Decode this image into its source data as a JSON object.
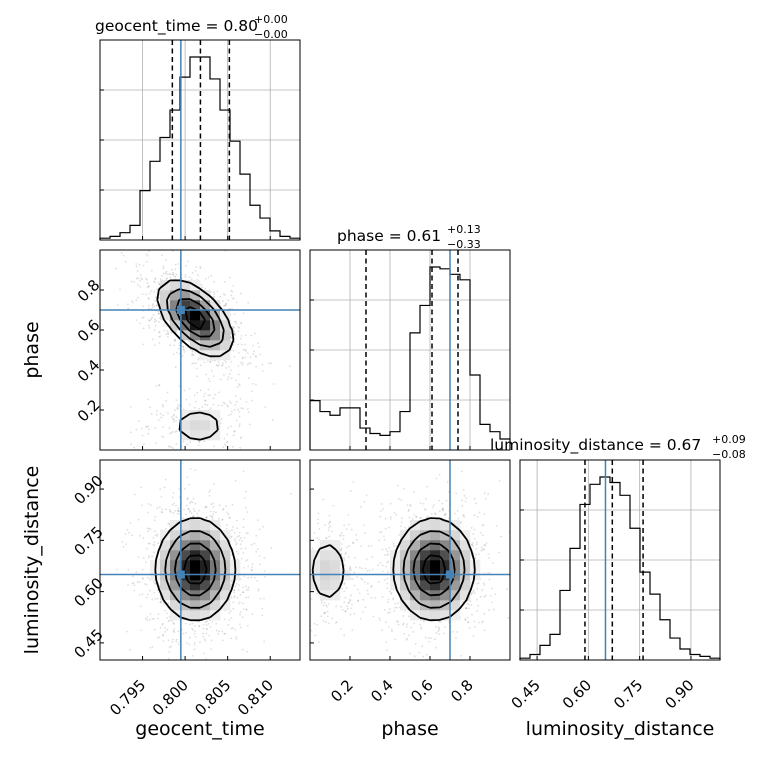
{
  "chart_data": {
    "type": "corner",
    "params": [
      "geocent_time",
      "phase",
      "luminosity_distance"
    ],
    "axis_labels": {
      "geocent_time": "geocent_time",
      "phase": "phase",
      "luminosity_distance": "luminosity_distance"
    },
    "ranges": {
      "geocent_time": [
        0.79,
        0.8135
      ],
      "phase": [
        0.0,
        1.0
      ],
      "luminosity_distance": [
        0.4,
        0.985
      ]
    },
    "ticks": {
      "geocent_time": {
        "values": [
          0.795,
          0.8,
          0.805,
          0.81
        ],
        "labels": [
          "0.795",
          "0.800",
          "0.805",
          "0.810"
        ]
      },
      "phase": {
        "values": [
          0.2,
          0.4,
          0.6,
          0.8
        ],
        "labels": [
          "0.2",
          "0.4",
          "0.6",
          "0.8"
        ]
      },
      "luminosity_distance": {
        "values": [
          0.45,
          0.6,
          0.75,
          0.9
        ],
        "labels": [
          "0.45",
          "0.60",
          "0.75",
          "0.90"
        ]
      }
    },
    "titles": {
      "geocent_time": {
        "name": "geocent_time",
        "median": "0.80",
        "plus": "+0.00",
        "minus": "−0.00"
      },
      "phase": {
        "name": "phase",
        "median": "0.61",
        "plus": "+0.13",
        "minus": "−0.33"
      },
      "luminosity_distance": {
        "name": "luminosity_distance",
        "median": "0.67",
        "plus": "+0.09",
        "minus": "−0.08"
      }
    },
    "truths": {
      "geocent_time": 0.7995,
      "phase": 0.7,
      "luminosity_distance": 0.65
    },
    "quantiles": {
      "geocent_time": [
        0.7985,
        0.8018,
        0.8052
      ],
      "phase": [
        0.28,
        0.61,
        0.74
      ],
      "luminosity_distance": [
        0.59,
        0.67,
        0.76
      ]
    },
    "histograms": {
      "geocent_time": [
        0.01,
        0.02,
        0.04,
        0.08,
        0.27,
        0.43,
        0.56,
        0.71,
        0.89,
        1.0,
        1.0,
        0.88,
        0.71,
        0.54,
        0.36,
        0.19,
        0.12,
        0.05,
        0.02,
        0.01
      ],
      "phase": [
        0.27,
        0.21,
        0.19,
        0.23,
        0.23,
        0.12,
        0.09,
        0.08,
        0.1,
        0.21,
        0.64,
        0.79,
        1.0,
        0.99,
        0.96,
        0.93,
        0.41,
        0.14,
        0.1,
        0.06
      ],
      "luminosity_distance": [
        0.01,
        0.03,
        0.08,
        0.14,
        0.38,
        0.61,
        0.85,
        0.96,
        1.0,
        0.97,
        0.9,
        0.72,
        0.48,
        0.36,
        0.22,
        0.12,
        0.06,
        0.03,
        0.02,
        0.01
      ]
    },
    "pair_blobs": {
      "phase_vs_geocent_time": [
        {
          "cx": 0.8012,
          "cy": 0.66,
          "sx": 0.0022,
          "sy": 0.095,
          "rho": -0.55,
          "w": 1.0
        },
        {
          "cx": 0.8016,
          "cy": 0.12,
          "sx": 0.0024,
          "sy": 0.07,
          "rho": 0.0,
          "w": 0.22
        }
      ],
      "luminosity_distance_vs_geocent_time": [
        {
          "cx": 0.8012,
          "cy": 0.665,
          "sx": 0.0023,
          "sy": 0.075,
          "rho": 0.0,
          "w": 1.0
        }
      ],
      "luminosity_distance_vs_phase": [
        {
          "cx": 0.62,
          "cy": 0.665,
          "sx": 0.1,
          "sy": 0.075,
          "rho": 0.0,
          "w": 1.0
        },
        {
          "cx": 0.09,
          "cy": 0.66,
          "sx": 0.07,
          "sy": 0.07,
          "rho": 0.0,
          "w": 0.25
        }
      ]
    },
    "colors": {
      "truth": "#4682b4",
      "contour": "#000000",
      "histogram": "#000000",
      "grid": "#b0b0b0"
    },
    "grid": true,
    "legend": "none"
  }
}
